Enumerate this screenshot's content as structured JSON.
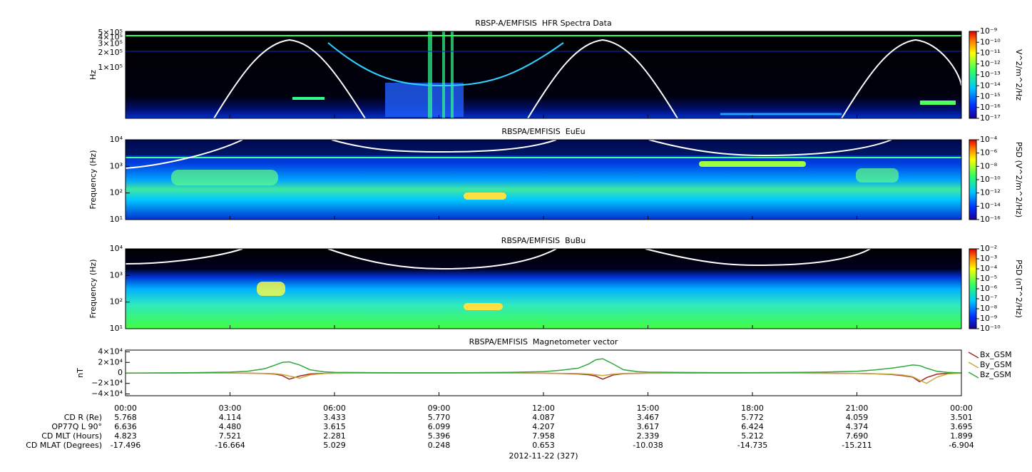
{
  "chart_data": [
    {
      "type": "spectrogram",
      "title": "RBSP-A/EMFISIS  HFR Spectra Data",
      "ylabel": "Hz",
      "log_y": true,
      "ylim": [
        10000,
        530000
      ],
      "yticks": [
        {
          "value": 100000,
          "label": "1×10⁵"
        },
        {
          "value": 200000,
          "label": "2×10⁵"
        },
        {
          "value": 300000,
          "label": "3×10⁵"
        },
        {
          "value": 400000,
          "label": "4×10⁵"
        },
        {
          "value": 500000,
          "label": "5×10⁵"
        }
      ],
      "zlabel": "V^2/m^2/Hz",
      "zlim": [
        1e-17,
        1e-09
      ],
      "zticks": [
        {
          "value": 1e-09,
          "label": "10⁻⁹"
        },
        {
          "value": 1e-10,
          "label": "10⁻¹⁰"
        },
        {
          "value": 1e-11,
          "label": "10⁻¹¹"
        },
        {
          "value": 1e-12,
          "label": "10⁻¹²"
        },
        {
          "value": 1e-13,
          "label": "10⁻¹³"
        },
        {
          "value": 1e-14,
          "label": "10⁻¹⁴"
        },
        {
          "value": 1e-15,
          "label": "10⁻¹⁵"
        },
        {
          "value": 1e-16,
          "label": "10⁻¹⁶"
        },
        {
          "value": 1e-17,
          "label": "10⁻¹⁷"
        }
      ]
    },
    {
      "type": "spectrogram",
      "title": "RBSPA/EMFISIS  EuEu",
      "ylabel": "Frequency (Hz)",
      "log_y": true,
      "ylim": [
        10,
        10000
      ],
      "yticks": [
        {
          "value": 10,
          "label": "10¹"
        },
        {
          "value": 100,
          "label": "10²"
        },
        {
          "value": 1000,
          "label": "10³"
        },
        {
          "value": 10000,
          "label": "10⁴"
        }
      ],
      "zlabel": "PSD (V^2/m^2/Hz)",
      "zlim": [
        1e-16,
        0.0001
      ],
      "zticks": [
        {
          "value": 0.0001,
          "label": "10⁻⁴"
        },
        {
          "value": 1e-06,
          "label": "10⁻⁶"
        },
        {
          "value": 1e-08,
          "label": "10⁻⁸"
        },
        {
          "value": 1e-10,
          "label": "10⁻¹⁰"
        },
        {
          "value": 1e-12,
          "label": "10⁻¹²"
        },
        {
          "value": 1e-14,
          "label": "10⁻¹⁴"
        },
        {
          "value": 1e-16,
          "label": "10⁻¹⁶"
        }
      ]
    },
    {
      "type": "spectrogram",
      "title": "RBSPA/EMFISIS  BuBu",
      "ylabel": "Frequency (Hz)",
      "log_y": true,
      "ylim": [
        10,
        10000
      ],
      "yticks": [
        {
          "value": 10,
          "label": "10¹"
        },
        {
          "value": 100,
          "label": "10²"
        },
        {
          "value": 1000,
          "label": "10³"
        },
        {
          "value": 10000,
          "label": "10⁴"
        }
      ],
      "zlabel": "PSD (nT^2/Hz)",
      "zlim": [
        1e-10,
        0.01
      ],
      "zticks": [
        {
          "value": 0.01,
          "label": "10⁻²"
        },
        {
          "value": 0.001,
          "label": "10⁻³"
        },
        {
          "value": 0.0001,
          "label": "10⁻⁴"
        },
        {
          "value": 1e-05,
          "label": "10⁻⁵"
        },
        {
          "value": 1e-06,
          "label": "10⁻⁶"
        },
        {
          "value": 1e-07,
          "label": "10⁻⁷"
        },
        {
          "value": 1e-08,
          "label": "10⁻⁸"
        },
        {
          "value": 1e-09,
          "label": "10⁻⁹"
        },
        {
          "value": 1e-10,
          "label": "10⁻¹⁰"
        }
      ]
    },
    {
      "type": "line",
      "title": "RBSPA/EMFISIS  Magnetometer vector",
      "ylabel": "nT",
      "ylim": [
        -43400,
        43400
      ],
      "yticks": [
        {
          "value": 40000,
          "label": "4×10⁴"
        },
        {
          "value": 20000,
          "label": "2×10⁴"
        },
        0,
        {
          "value": -20000,
          "label": "−2×10⁴"
        },
        {
          "value": -40000,
          "label": "−4×10⁴"
        }
      ],
      "xlim": [
        0,
        24
      ],
      "xticks": [
        {
          "value": 0,
          "label": "00:00"
        },
        {
          "value": 3,
          "label": "03:00"
        },
        {
          "value": 6,
          "label": "06:00"
        },
        {
          "value": 9,
          "label": "09:00"
        },
        {
          "value": 12,
          "label": "12:00"
        },
        {
          "value": 15,
          "label": "15:00"
        },
        {
          "value": 18,
          "label": "18:00"
        },
        {
          "value": 21,
          "label": "21:00"
        },
        {
          "value": 24,
          "label": "00:00"
        }
      ],
      "x": [
        0,
        1,
        2,
        3,
        3.5,
        4,
        4.3,
        4.5,
        4.7,
        5,
        5.3,
        5.7,
        6,
        7,
        8,
        9,
        10,
        11,
        12,
        12.5,
        13,
        13.3,
        13.5,
        13.7,
        14,
        14.3,
        14.7,
        15,
        16,
        17,
        18,
        19,
        20,
        21,
        21.5,
        22,
        22.3,
        22.6,
        22.8,
        23,
        23.3,
        23.6,
        24
      ],
      "series": [
        {
          "name": "Bx_GSM",
          "color": "#a0281e",
          "values": [
            -300,
            -300,
            -300,
            -400,
            -600,
            -1200,
            -2500,
            -5000,
            -12000,
            -6000,
            -2000,
            -800,
            -500,
            -300,
            -200,
            -200,
            -300,
            -400,
            -600,
            -1200,
            -2000,
            -3500,
            -6000,
            -12000,
            -4000,
            -1500,
            -800,
            -500,
            -300,
            -200,
            -300,
            -400,
            -600,
            -1000,
            -1800,
            -3000,
            -5000,
            -8000,
            -17000,
            -9000,
            -2500,
            -800,
            -300
          ]
        },
        {
          "name": "By_GSM",
          "color": "#c8a83c",
          "values": [
            -200,
            -200,
            -300,
            -300,
            -500,
            -800,
            -1500,
            -3000,
            -6000,
            -10000,
            -4000,
            -1200,
            -600,
            -300,
            -200,
            -200,
            -300,
            -300,
            -500,
            -800,
            -1200,
            -2000,
            -3500,
            -5000,
            -2500,
            -1000,
            -500,
            -300,
            -200,
            -200,
            -300,
            -400,
            -500,
            -900,
            -1500,
            -2500,
            -4000,
            -7000,
            -14000,
            -20000,
            -8000,
            -2000,
            -400
          ]
        },
        {
          "name": "Bz_GSM",
          "color": "#2fa83c",
          "values": [
            -500,
            0,
            500,
            1500,
            3000,
            8000,
            15000,
            20000,
            21000,
            15000,
            6000,
            2000,
            1000,
            500,
            300,
            300,
            500,
            1000,
            2500,
            5000,
            9000,
            17000,
            25000,
            27000,
            17000,
            6000,
            2500,
            1500,
            800,
            500,
            500,
            800,
            1500,
            3000,
            5500,
            9000,
            12000,
            15000,
            14000,
            9000,
            3000,
            1000,
            0
          ]
        }
      ]
    }
  ],
  "ephemeris": {
    "rows": [
      {
        "label": "CD R (Re)",
        "values": [
          "5.768",
          "4.114",
          "3.433",
          "5.770",
          "4.087",
          "3.467",
          "5.772",
          "4.059",
          "3.501"
        ]
      },
      {
        "label": "OP77Q L 90°",
        "values": [
          "6.636",
          "4.480",
          "3.615",
          "6.099",
          "4.207",
          "3.617",
          "6.424",
          "4.374",
          "3.695"
        ]
      },
      {
        "label": "CD MLT (Hours)",
        "values": [
          "4.823",
          "7.521",
          "2.281",
          "5.396",
          "7.958",
          "2.339",
          "5.212",
          "7.690",
          "1.899"
        ]
      },
      {
        "label": "CD MLAT (Degrees)",
        "values": [
          "-17.496",
          "-16.664",
          "5.029",
          "0.248",
          "0.653",
          "-10.038",
          "-14.735",
          "-15.211",
          "-6.904"
        ]
      }
    ],
    "date": "2012-11-22 (327)"
  }
}
